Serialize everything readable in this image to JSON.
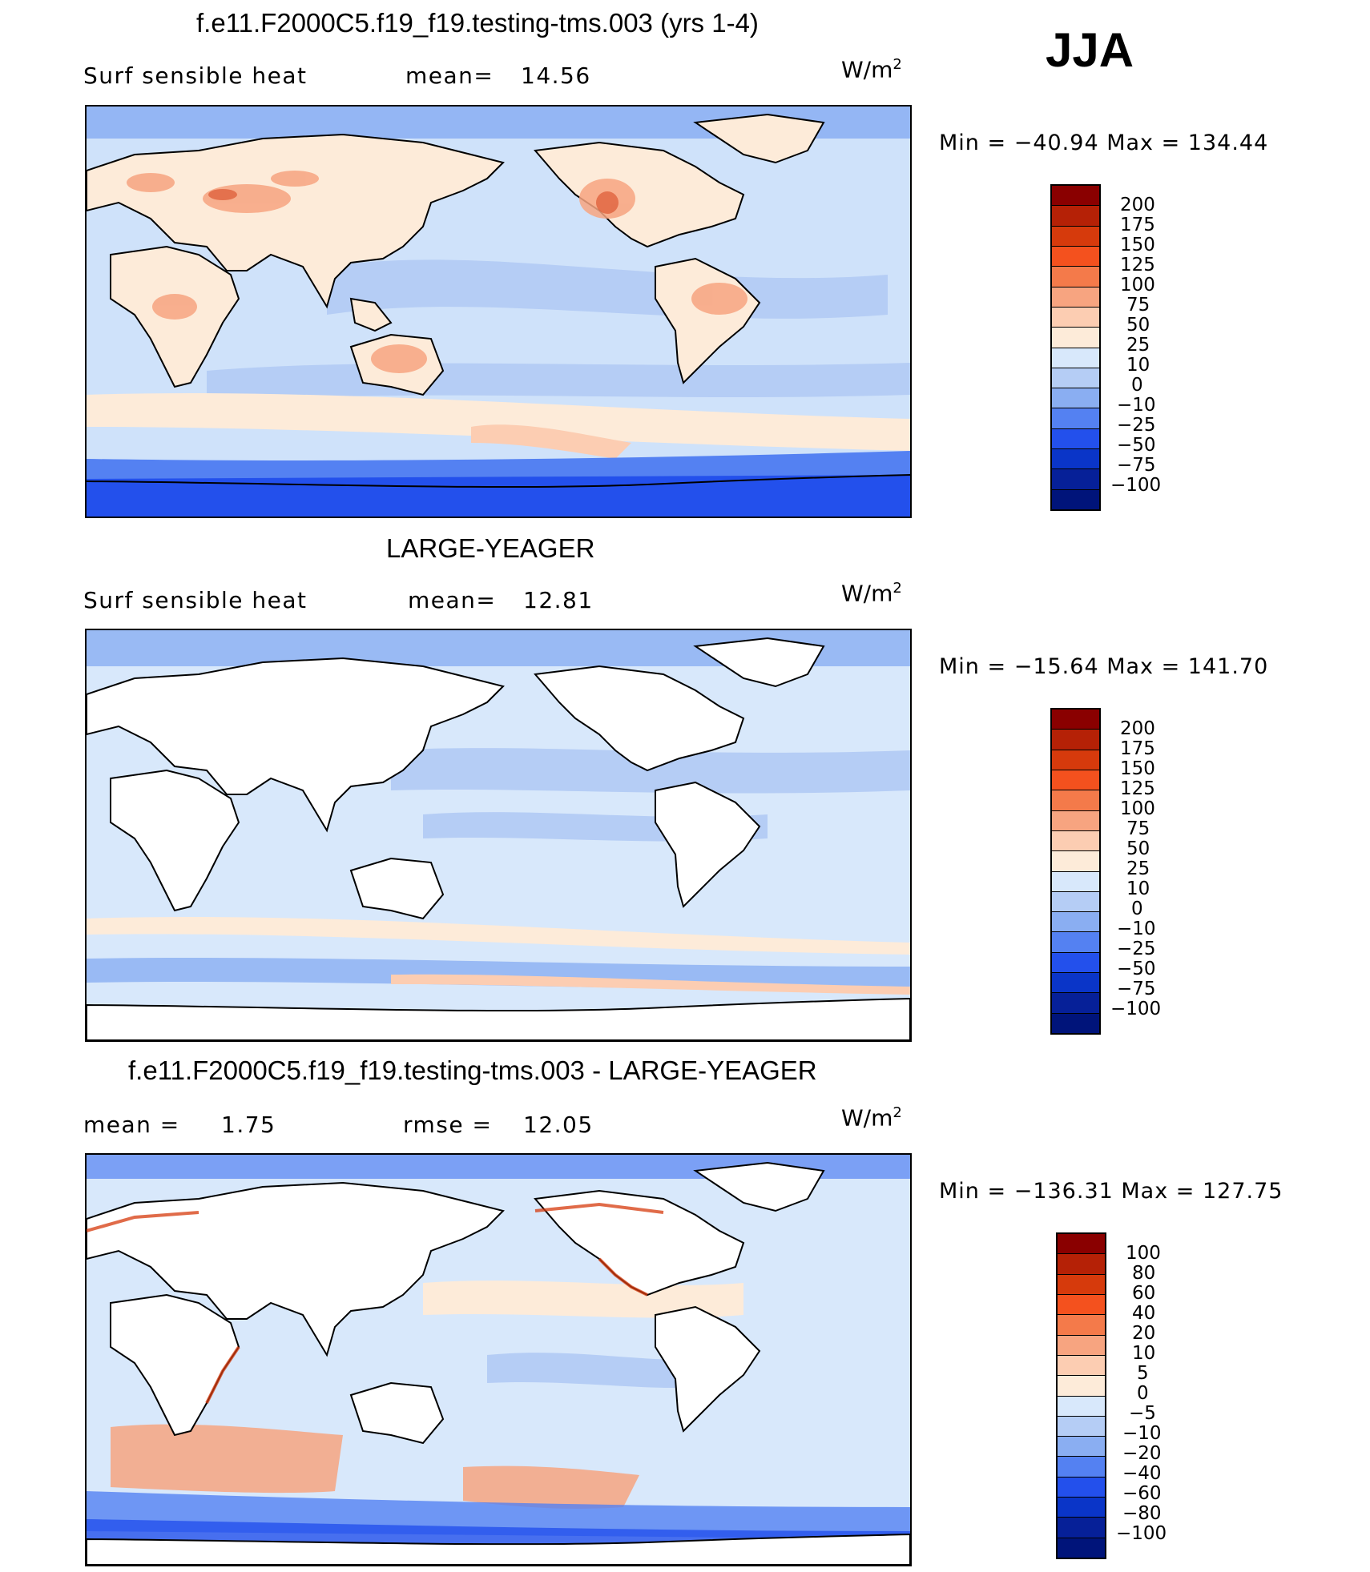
{
  "season": "JJA",
  "units": "W/m",
  "units_exp": "2",
  "panels": [
    {
      "title": "f.e11.F2000C5.f19_f19.testing-tms.003 (yrs 1-4)",
      "variable": "Surf  sensible  heat",
      "stat_label": "mean=",
      "stat_value": "14.56",
      "minmax": "Min  =  −40.94  Max  =  134.44",
      "colorbar_labels": [
        "200",
        "175",
        "150",
        "125",
        "100",
        "75",
        "50",
        "25",
        "10",
        "0",
        "−10",
        "−25",
        "−50",
        "−75",
        "−100"
      ]
    },
    {
      "title": "LARGE-YEAGER",
      "variable": "Surf  sensible  heat",
      "stat_label": "mean=",
      "stat_value": "12.81",
      "minmax": "Min  =  −15.64  Max  =  141.70",
      "colorbar_labels": [
        "200",
        "175",
        "150",
        "125",
        "100",
        "75",
        "50",
        "25",
        "10",
        "0",
        "−10",
        "−25",
        "−50",
        "−75",
        "−100"
      ]
    },
    {
      "title": "f.e11.F2000C5.f19_f19.testing-tms.003 - LARGE-YEAGER",
      "mean_label": "mean  =",
      "mean_value": "1.75",
      "rmse_label": "rmse  =",
      "rmse_value": "12.05",
      "minmax": "Min  =  −136.31  Max  =  127.75",
      "colorbar_labels": [
        "100",
        "80",
        "60",
        "40",
        "20",
        "10",
        "5",
        "0",
        "−5",
        "−10",
        "−20",
        "−40",
        "−60",
        "−80",
        "−100"
      ]
    }
  ],
  "colors": {
    "palette": [
      "#8a0000",
      "#b52106",
      "#d63a0c",
      "#f4511e",
      "#f47a4a",
      "#f7a480",
      "#fccdb2",
      "#fdebd9",
      "#d8e8fb",
      "#b5cdf5",
      "#8aaef2",
      "#5481f2",
      "#2350ec",
      "#0a35c8",
      "#062098",
      "#00147a"
    ],
    "ocean_mid": "#cfe2fa",
    "land_white": "#ffffff"
  }
}
